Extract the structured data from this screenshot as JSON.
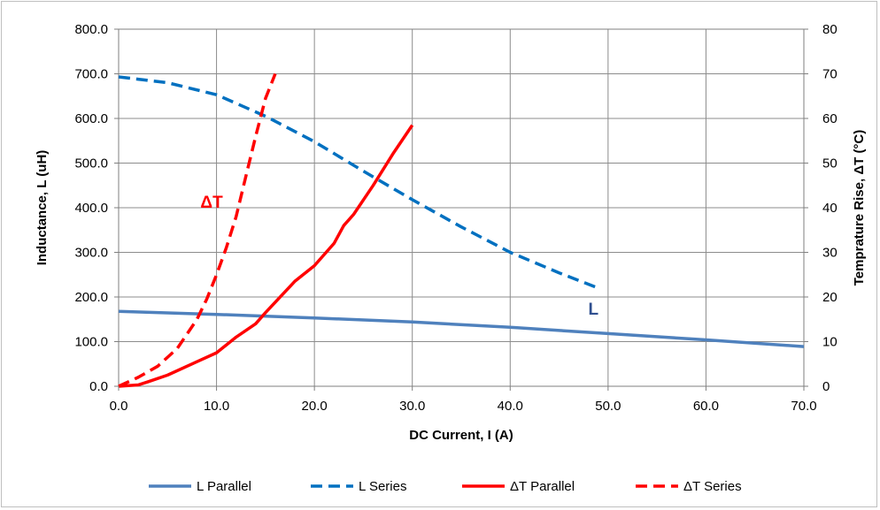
{
  "chart_data": {
    "type": "line",
    "xlabel": "DC Current, I (A)",
    "ylabel_left": "Inductance, L (uH)",
    "ylabel_right": "Temprature Rise, ΔT (°C)",
    "xlim": [
      0,
      70
    ],
    "ylim_left": [
      0,
      800
    ],
    "ylim_right": [
      0,
      80
    ],
    "x_ticks": [
      "0.0",
      "10.0",
      "20.0",
      "30.0",
      "40.0",
      "50.0",
      "60.0",
      "70.0"
    ],
    "y_left_ticks": [
      "0.0",
      "100.0",
      "200.0",
      "300.0",
      "400.0",
      "500.0",
      "600.0",
      "700.0",
      "800.0"
    ],
    "y_right_ticks": [
      "0",
      "10",
      "20",
      "30",
      "40",
      "50",
      "60",
      "70",
      "80"
    ],
    "grid": true,
    "legend_position": "bottom",
    "annotations": [
      {
        "text": "ΔT",
        "x": 9.5,
        "y_left": 400,
        "color": "#ff0000"
      },
      {
        "text": "L",
        "x": 48.5,
        "y_left": 160,
        "color": "#2f4f8f"
      }
    ],
    "series": [
      {
        "name": "L Parallel",
        "axis": "left",
        "color": "#4f81bd",
        "dash": "solid",
        "x": [
          0,
          10,
          20,
          30,
          40,
          50,
          60,
          70
        ],
        "y": [
          168,
          161,
          153,
          144,
          132,
          118,
          104,
          89
        ]
      },
      {
        "name": "L Series",
        "axis": "left",
        "color": "#0070c0",
        "dash": "dashed",
        "x": [
          0,
          5,
          10,
          15,
          20,
          25,
          30,
          35,
          40,
          45,
          49
        ],
        "y": [
          693,
          680,
          653,
          605,
          548,
          482,
          418,
          357,
          300,
          254,
          220
        ]
      },
      {
        "name": "ΔT Parallel",
        "axis": "right",
        "color": "#ff0000",
        "dash": "solid",
        "x": [
          0,
          2,
          3,
          5,
          8,
          10,
          12,
          14,
          15,
          18,
          20,
          22,
          23,
          24,
          26,
          28,
          30
        ],
        "y": [
          0,
          0.3,
          1,
          2.5,
          5.5,
          7.5,
          11,
          14,
          16.5,
          23.5,
          27,
          32,
          36,
          38.5,
          45,
          52,
          58.5
        ]
      },
      {
        "name": "ΔT Series",
        "axis": "right",
        "color": "#ff0000",
        "dash": "dashed",
        "x": [
          0,
          2,
          4,
          6,
          8,
          9,
          10,
          11,
          12,
          13,
          14,
          15,
          16
        ],
        "y": [
          0,
          2,
          4.5,
          8.5,
          15,
          19.5,
          25,
          31,
          38,
          47,
          56,
          64.5,
          70
        ]
      }
    ]
  }
}
